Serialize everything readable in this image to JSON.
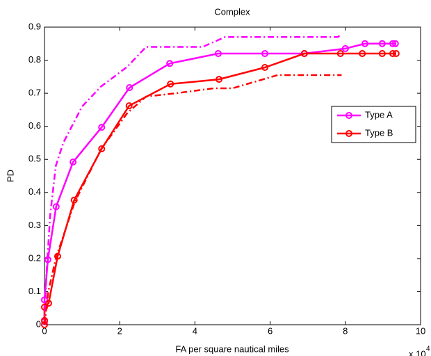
{
  "chart_data": {
    "type": "line",
    "title": "Complex",
    "x_label": "FA per square nautical miles",
    "y_label": "PD",
    "x_scale_label": {
      "base": "x 10",
      "exponent": "4"
    },
    "xlim": [
      0,
      10
    ],
    "ylim": [
      0,
      0.9
    ],
    "xticks": [
      0,
      2,
      4,
      6,
      8,
      10
    ],
    "yticks": [
      0,
      0.1,
      0.2,
      0.3,
      0.4,
      0.5,
      0.6,
      0.7,
      0.8,
      0.9
    ],
    "grid": false,
    "legend_position": "right",
    "series": [
      {
        "name": "Type A",
        "color": "#ff00ff",
        "dash": "solid",
        "markers": true,
        "x": [
          0,
          0,
          0.09,
          0.31,
          0.76,
          1.52,
          2.26,
          3.33,
          4.62,
          5.86,
          6.91,
          8.0,
          8.52,
          8.98,
          9.26,
          9.33
        ],
        "values": [
          0.01,
          0.075,
          0.197,
          0.357,
          0.492,
          0.597,
          0.717,
          0.79,
          0.82,
          0.82,
          0.82,
          0.835,
          0.85,
          0.85,
          0.85,
          0.85
        ]
      },
      {
        "name": "Type B",
        "color": "#ff0000",
        "dash": "solid",
        "markers": true,
        "x": [
          0,
          0,
          0,
          0.11,
          0.35,
          0.79,
          1.52,
          2.25,
          3.35,
          4.64,
          5.86,
          6.91,
          7.87,
          8.45,
          8.98,
          9.26,
          9.35
        ],
        "values": [
          0,
          0.013,
          0.053,
          0.065,
          0.207,
          0.377,
          0.532,
          0.662,
          0.728,
          0.742,
          0.778,
          0.82,
          0.82,
          0.82,
          0.82,
          0.82,
          0.82
        ]
      },
      {
        "color": "#ff00ff",
        "dash": "dashdot",
        "markers": false,
        "x": [
          0,
          0.05,
          0.15,
          0.3,
          0.5,
          1.0,
          1.5,
          2.2,
          2.7,
          3.5,
          4.2,
          4.8,
          7.8,
          7.9
        ],
        "values": [
          0,
          0.15,
          0.33,
          0.48,
          0.55,
          0.66,
          0.72,
          0.78,
          0.84,
          0.84,
          0.84,
          0.87,
          0.87,
          0.88
        ]
      },
      {
        "color": "#ff0000",
        "dash": "dashdot",
        "markers": false,
        "x": [
          0,
          0.1,
          0.3,
          0.8,
          1.5,
          2.2,
          2.7,
          3.5,
          4.5,
          5.0,
          6.2,
          7.9
        ],
        "values": [
          0,
          0.1,
          0.2,
          0.37,
          0.53,
          0.64,
          0.69,
          0.7,
          0.715,
          0.715,
          0.755,
          0.755
        ]
      }
    ]
  }
}
